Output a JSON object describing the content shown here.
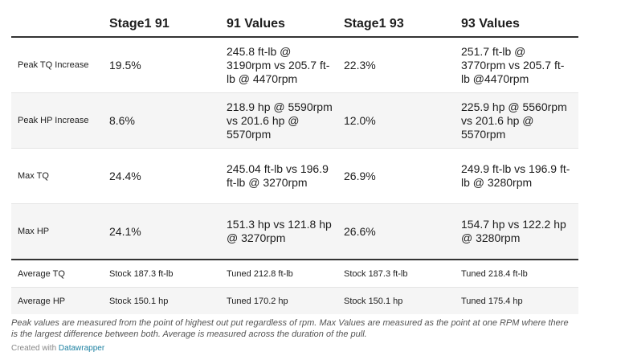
{
  "chart_data": {
    "type": "table",
    "columns": [
      "",
      "Stage1 91",
      "91 Values",
      "Stage1 93",
      "93 Values"
    ],
    "rows": [
      {
        "label": "Peak TQ Increase",
        "stage1_91": "19.5%",
        "values_91": "245.8 ft-lb @ 3190rpm vs 205.7 ft-lb @ 4470rpm",
        "stage1_93": "22.3%",
        "values_93": "251.7 ft-lb @ 3770rpm vs 205.7 ft-lb @4470rpm"
      },
      {
        "label": "Peak HP Increase",
        "stage1_91": "8.6%",
        "values_91": "218.9 hp @ 5590rpm vs 201.6 hp @ 5570rpm",
        "stage1_93": "12.0%",
        "values_93": "225.9 hp @ 5560rpm vs 201.6 hp @ 5570rpm"
      },
      {
        "label": "Max TQ",
        "stage1_91": "24.4%",
        "values_91": "245.04 ft-lb vs 196.9 ft-lb @ 3270rpm",
        "stage1_93": "26.9%",
        "values_93": "249.9 ft-lb vs 196.9 ft-lb @ 3280rpm"
      },
      {
        "label": "Max HP",
        "stage1_91": "24.1%",
        "values_91": "151.3 hp vs 121.8 hp @ 3270rpm",
        "stage1_93": "26.6%",
        "values_93": "154.7 hp vs 122.2 hp @ 3280rpm"
      },
      {
        "label": "Average TQ",
        "stage1_91": "Stock 187.3 ft-lb",
        "values_91": "Tuned 212.8 ft-lb",
        "stage1_93": "Stock 187.3 ft-lb",
        "values_93": "Tuned 218.4 ft-lb"
      },
      {
        "label": "Average HP",
        "stage1_91": "Stock 150.1 hp",
        "values_91": "Tuned 170.2 hp",
        "stage1_93": "Stock 150.1 hp",
        "values_93": "Tuned 175.4 hp"
      }
    ]
  },
  "notes": "Peak values are measured from the point of highest out put regardless of rpm. Max Values are measured as the point at one RPM where there is the largest difference between both. Average is measured across the duration of the pull.",
  "credit": {
    "prefix": "Created with",
    "link": "Datawrapper"
  }
}
